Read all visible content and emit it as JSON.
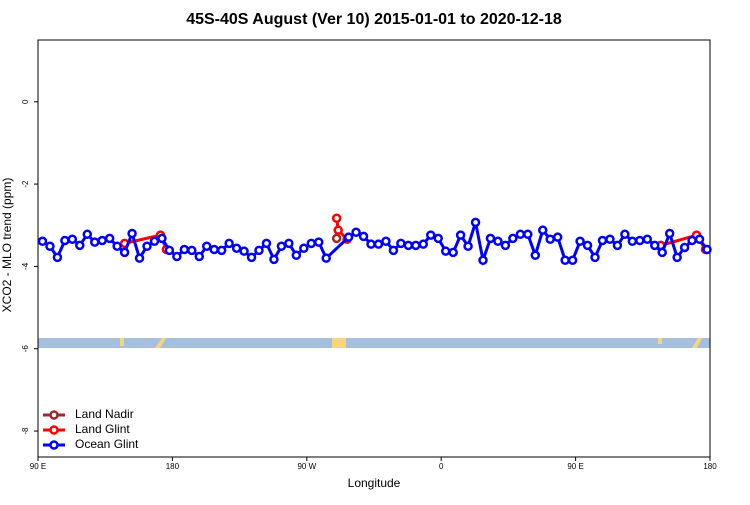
{
  "chart_data": {
    "type": "line",
    "title": "45S-40S August (Ver 10)   2015-01-01 to 2020-12-18",
    "xlabel": "Longitude",
    "ylabel": "XCO2 - MLO trend (ppm)",
    "xlim": [
      90,
      540
    ],
    "ylim": [
      1.5,
      -8.63
    ],
    "xticks": [
      {
        "value": 90,
        "label": "90 E"
      },
      {
        "value": 180,
        "label": "180"
      },
      {
        "value": 270,
        "label": "90 W"
      },
      {
        "value": 360,
        "label": "0"
      },
      {
        "value": 450,
        "label": "90 E"
      },
      {
        "value": 540,
        "label": "180"
      }
    ],
    "yticks": [
      0,
      -2,
      -4,
      -6,
      -8
    ],
    "legend": "bottom-left",
    "series": [
      {
        "name": "Land Nadir",
        "color": "#a0282a",
        "x": [
          290
        ],
        "values": [
          -3.32
        ]
      },
      {
        "name": "Land Glint",
        "color": "#ff0000",
        "x": [
          148,
          172,
          176,
          null,
          290,
          291,
          297,
          null,
          507,
          531,
          537
        ],
        "values": [
          -3.44,
          -3.24,
          -3.59,
          null,
          -2.83,
          -3.12,
          -3.34,
          null,
          -3.49,
          -3.24,
          -3.59
        ]
      },
      {
        "name": "Ocean Glint",
        "color": "#0000ff",
        "x": [
          93,
          98,
          103,
          108,
          113,
          118,
          123,
          128,
          133,
          138,
          143,
          148,
          153,
          158,
          163,
          168,
          173,
          178,
          183,
          188,
          193,
          198,
          203,
          208,
          213,
          218,
          223,
          228,
          233,
          238,
          243,
          248,
          253,
          258,
          263,
          268,
          273,
          278,
          283,
          298,
          303,
          308,
          313,
          318,
          323,
          328,
          333,
          338,
          343,
          348,
          353,
          358,
          363,
          368,
          373,
          378,
          383,
          388,
          393,
          398,
          403,
          408,
          413,
          418,
          423,
          428,
          433,
          438,
          443,
          448,
          453,
          458,
          463,
          468,
          473,
          478,
          483,
          488,
          493,
          498,
          503,
          508,
          513,
          518,
          523,
          528,
          533,
          538
        ],
        "values": [
          -3.39,
          -3.51,
          -3.78,
          -3.37,
          -3.34,
          -3.49,
          -3.22,
          -3.41,
          -3.37,
          -3.32,
          -3.51,
          -3.66,
          -3.2,
          -3.8,
          -3.51,
          -3.39,
          -3.32,
          -3.61,
          -3.76,
          -3.59,
          -3.61,
          -3.76,
          -3.51,
          -3.59,
          -3.61,
          -3.44,
          -3.56,
          -3.63,
          -3.78,
          -3.61,
          -3.44,
          -3.83,
          -3.51,
          -3.44,
          -3.73,
          -3.56,
          -3.44,
          -3.41,
          -3.8,
          -3.29,
          -3.17,
          -3.27,
          -3.46,
          -3.46,
          -3.39,
          -3.61,
          -3.44,
          -3.49,
          -3.49,
          -3.46,
          -3.24,
          -3.32,
          -3.63,
          -3.66,
          -3.24,
          -3.51,
          -2.93,
          -3.85,
          -3.32,
          -3.39,
          -3.49,
          -3.32,
          -3.22,
          -3.22,
          -3.73,
          -3.12,
          -3.34,
          -3.29,
          -3.85,
          -3.85,
          -3.39,
          -3.49,
          -3.78,
          -3.37,
          -3.34,
          -3.49,
          -3.22,
          -3.39,
          -3.37,
          -3.34,
          -3.49,
          -3.66,
          -3.2,
          -3.78,
          -3.54,
          -3.37,
          -3.34,
          -3.59
        ]
      }
    ]
  }
}
